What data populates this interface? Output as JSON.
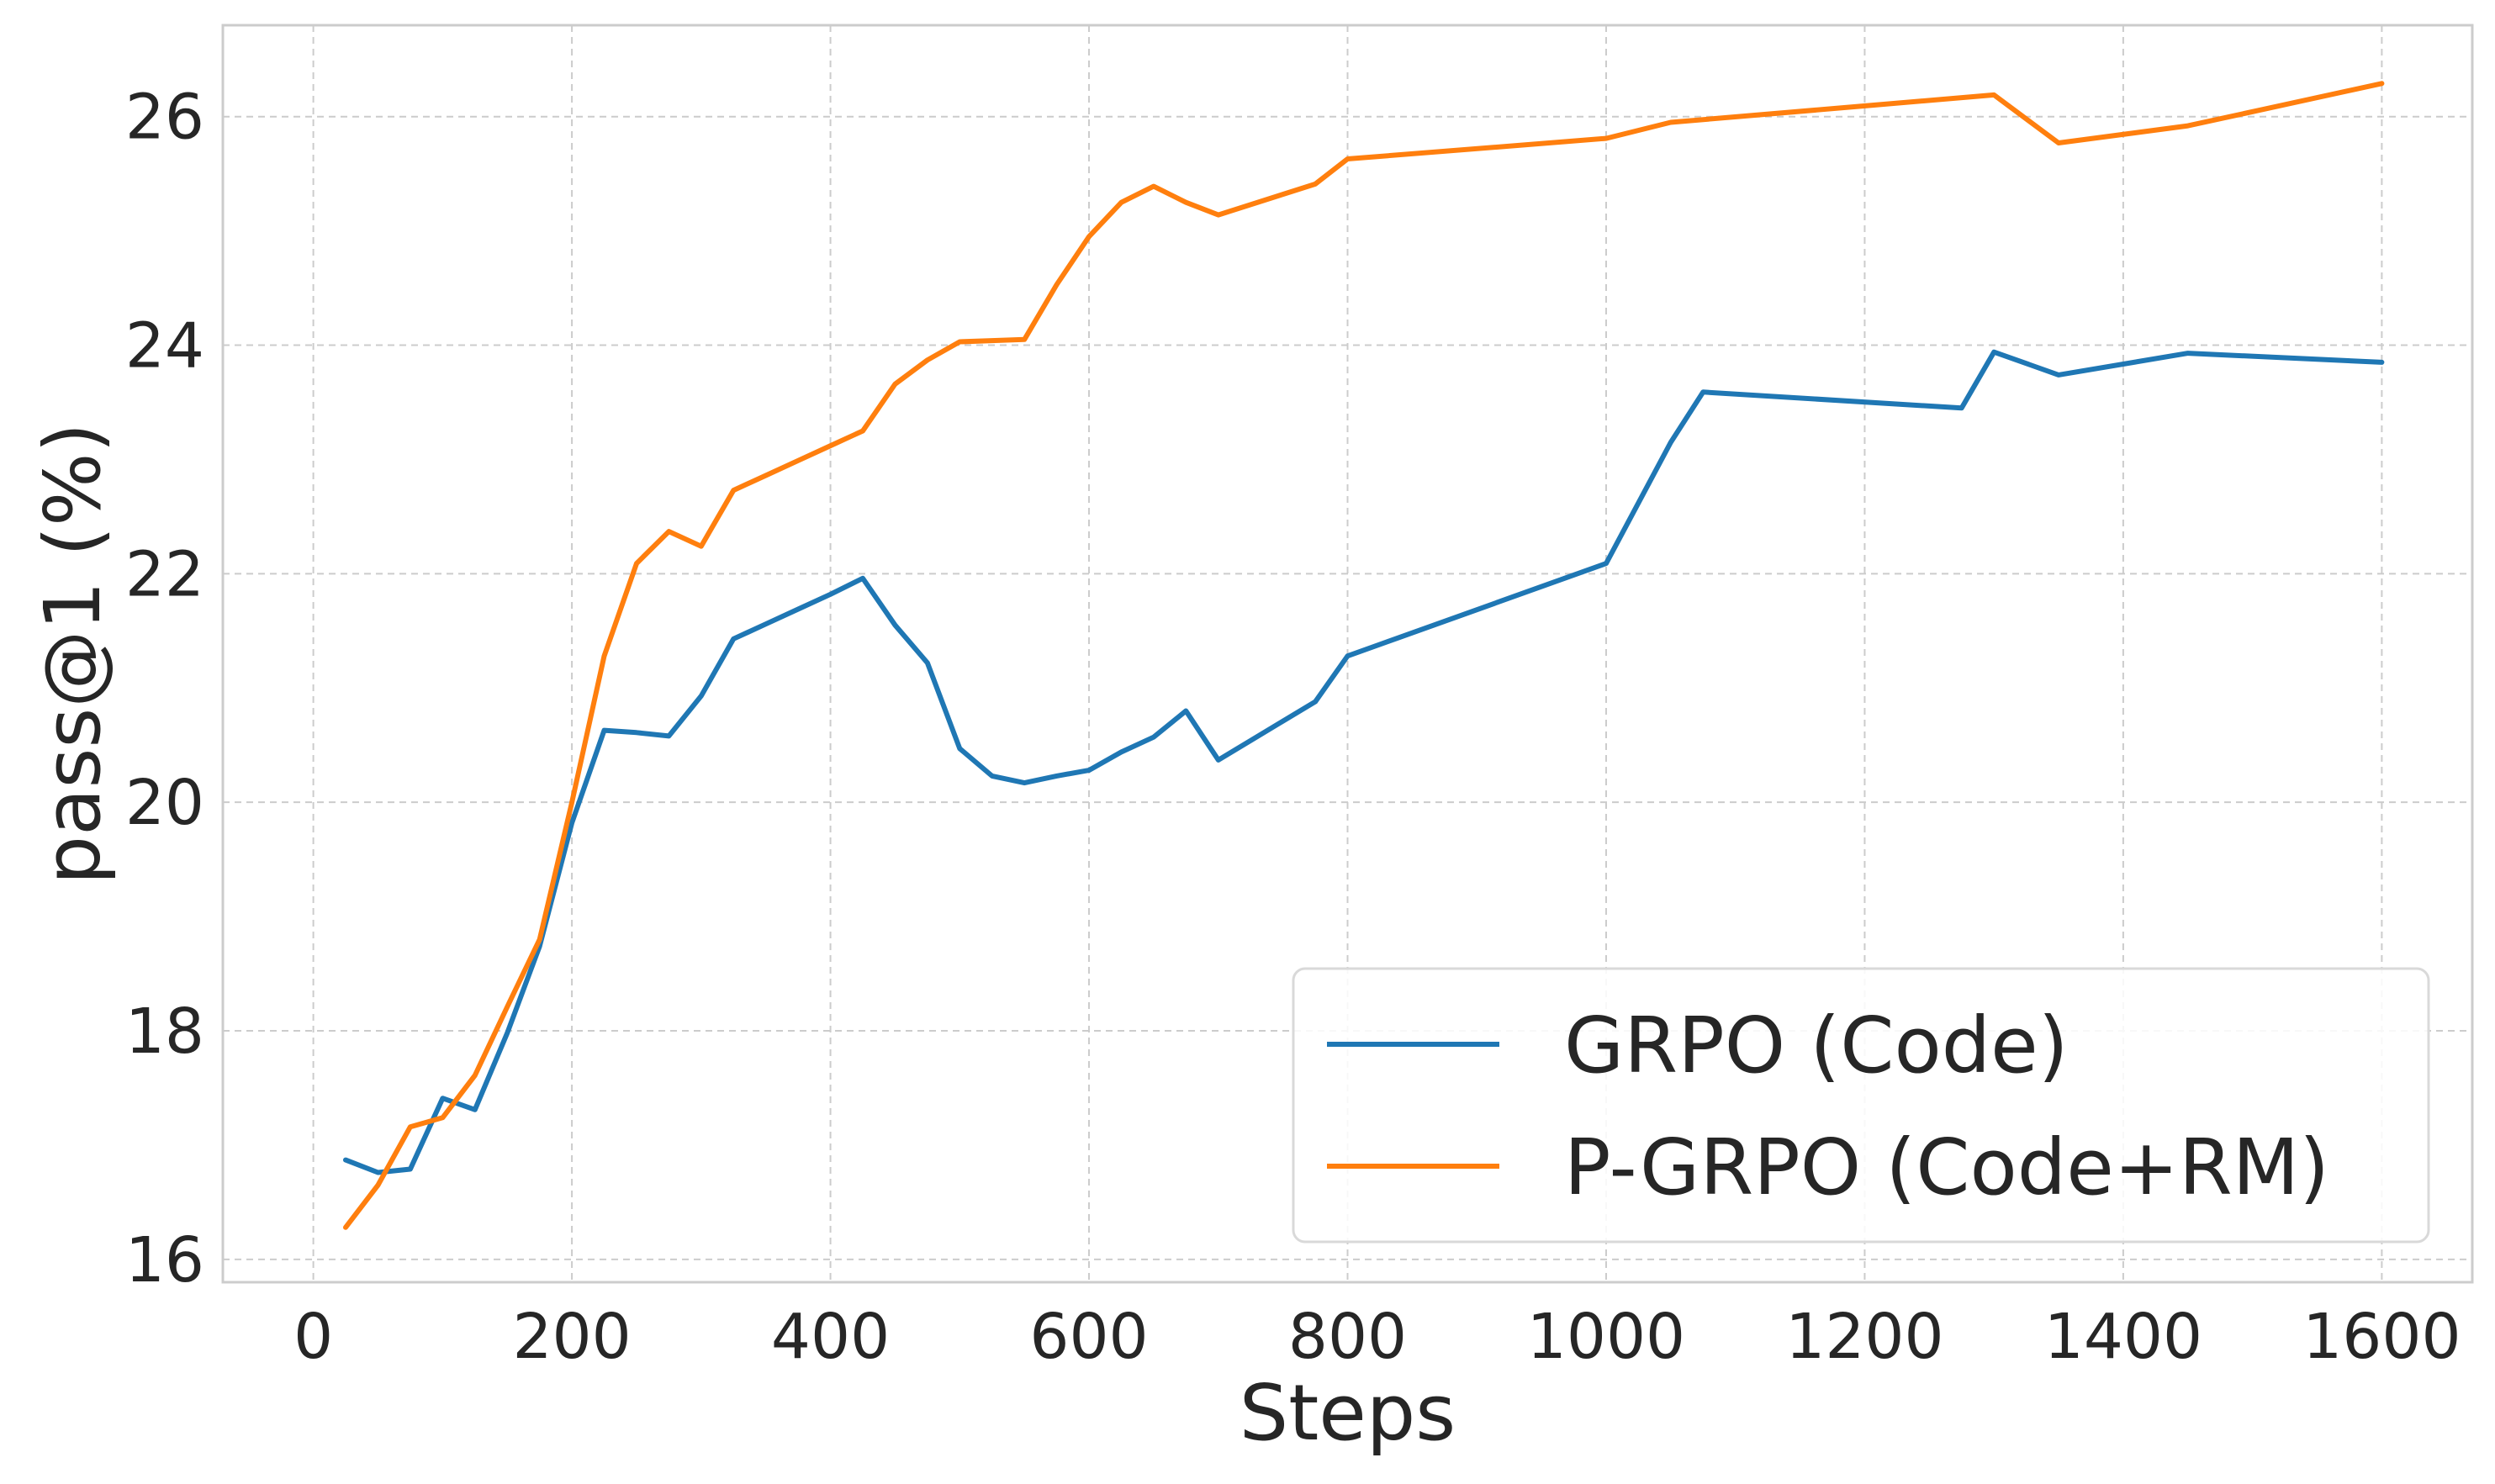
{
  "chart_data": {
    "type": "line",
    "title": "",
    "xlabel": "Steps",
    "ylabel": "pass@1 (%)",
    "xlim": [
      -70,
      1670
    ],
    "ylim": [
      15.8,
      26.8
    ],
    "xticks": [
      0,
      200,
      400,
      600,
      800,
      1000,
      1200,
      1400,
      1600
    ],
    "yticks": [
      16,
      18,
      20,
      22,
      24,
      26
    ],
    "grid": true,
    "legend_position": "bottom-right",
    "series": [
      {
        "name": "GRPO (Code)",
        "color": "#1f77b4",
        "x": [
          25,
          50,
          75,
          100,
          125,
          150,
          175,
          200,
          225,
          250,
          275,
          300,
          325,
          350,
          375,
          400,
          425,
          450,
          475,
          500,
          525,
          550,
          575,
          600,
          625,
          650,
          675,
          700,
          725,
          750,
          775,
          800,
          1000,
          1050,
          1075,
          1275,
          1300,
          1350,
          1450,
          1600
        ],
        "y": [
          16.87,
          16.76,
          16.79,
          17.41,
          17.31,
          17.98,
          18.74,
          19.82,
          20.63,
          20.61,
          20.58,
          20.93,
          21.43,
          21.56,
          21.69,
          21.82,
          21.96,
          21.55,
          21.22,
          20.47,
          20.23,
          20.17,
          20.23,
          20.28,
          20.44,
          20.57,
          20.8,
          20.37,
          20.54,
          20.71,
          20.88,
          21.28,
          22.09,
          23.15,
          23.59,
          23.45,
          23.94,
          23.74,
          23.93,
          23.85
        ]
      },
      {
        "name": "P-GRPO (Code+RM)",
        "color": "#ff7f0e",
        "x": [
          25,
          50,
          75,
          100,
          125,
          150,
          175,
          200,
          225,
          250,
          275,
          300,
          325,
          350,
          375,
          400,
          425,
          450,
          475,
          500,
          525,
          550,
          575,
          600,
          625,
          650,
          675,
          700,
          725,
          750,
          775,
          800,
          1000,
          1050,
          1300,
          1350,
          1450,
          1600
        ],
        "y": [
          16.28,
          16.65,
          17.16,
          17.24,
          17.61,
          18.21,
          18.8,
          20.0,
          21.28,
          22.09,
          22.37,
          22.24,
          22.73,
          22.86,
          22.99,
          23.12,
          23.25,
          23.66,
          23.87,
          24.03,
          24.04,
          24.05,
          24.53,
          24.95,
          25.25,
          25.39,
          25.25,
          25.14,
          25.23,
          25.32,
          25.41,
          25.63,
          25.81,
          25.95,
          26.19,
          25.77,
          25.92,
          26.29
        ]
      }
    ]
  }
}
